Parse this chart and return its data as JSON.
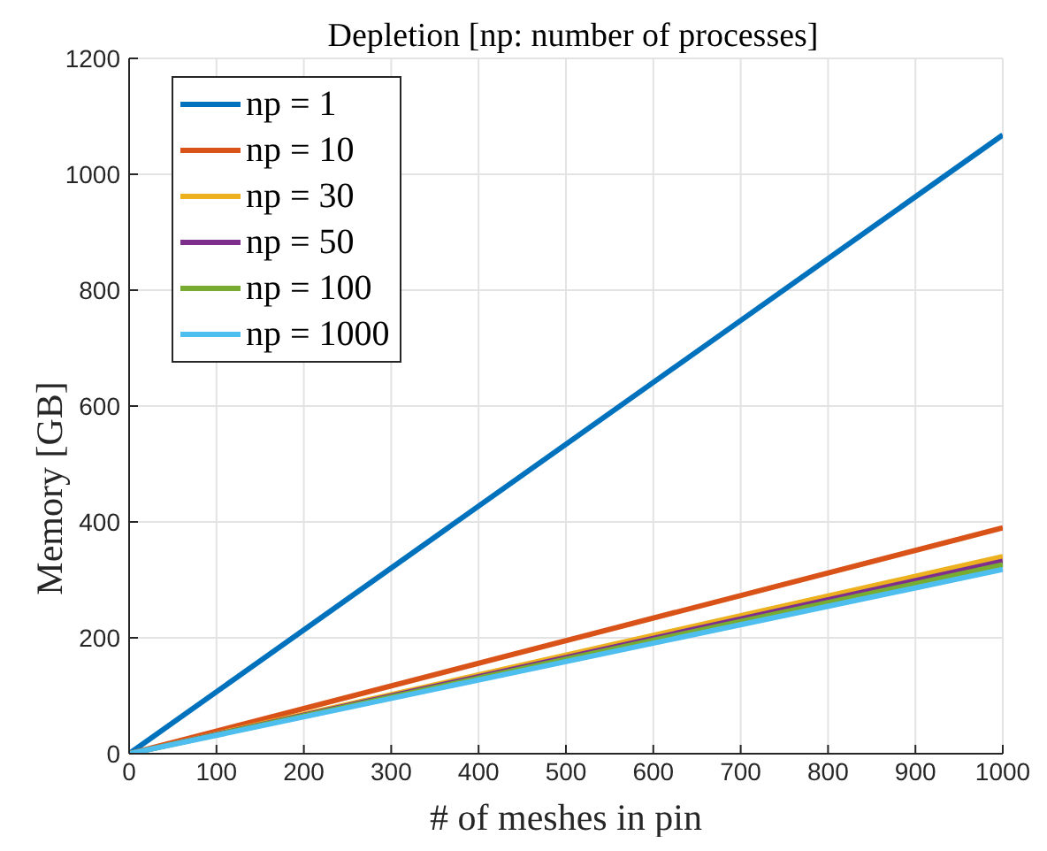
{
  "chart_data": {
    "type": "line",
    "title": "Depletion [np: number of processes]",
    "xlabel": "# of meshes in pin",
    "ylabel": "Memory [GB]",
    "x": [
      0,
      1000
    ],
    "series": [
      {
        "name": "np = 1",
        "color": "#0072bd",
        "values": [
          0,
          1068
        ]
      },
      {
        "name": "np = 10",
        "color": "#d95319",
        "values": [
          0,
          390
        ]
      },
      {
        "name": "np = 30",
        "color": "#edb120",
        "values": [
          0,
          340
        ]
      },
      {
        "name": "np = 50",
        "color": "#7e2f8e",
        "values": [
          0,
          332
        ]
      },
      {
        "name": "np = 100",
        "color": "#77ac30",
        "values": [
          0,
          326
        ]
      },
      {
        "name": "np = 1000",
        "color": "#4dbeee",
        "values": [
          0,
          318
        ]
      }
    ],
    "xlim": [
      0,
      1000
    ],
    "xticks": [
      0,
      100,
      200,
      300,
      400,
      500,
      600,
      700,
      800,
      900,
      1000
    ],
    "ylim": [
      0,
      1200
    ],
    "yticks": [
      0,
      200,
      400,
      600,
      800,
      1000,
      1200
    ],
    "grid": true,
    "legend": "top left",
    "marker": "none",
    "line_style": "solid"
  }
}
